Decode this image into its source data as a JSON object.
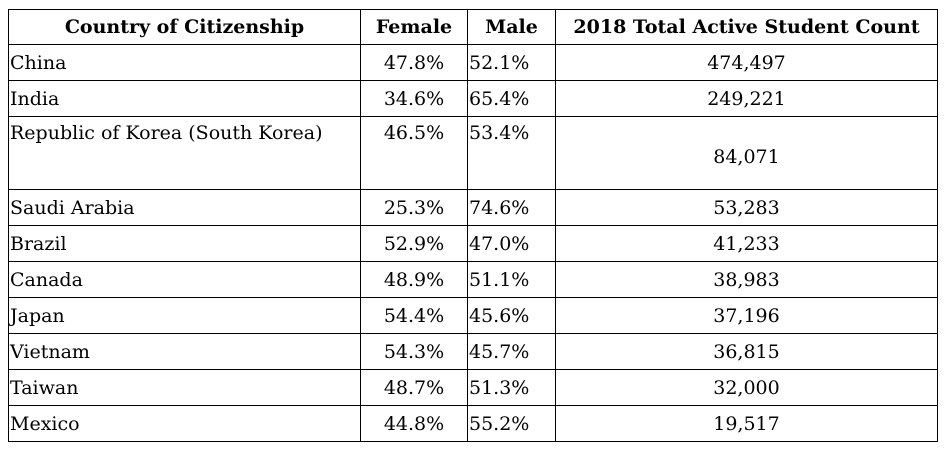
{
  "headers": {
    "country": "Country of Citizenship",
    "female": "Female",
    "male": "Male",
    "total": "2018 Total Active Student Count"
  },
  "rows": [
    {
      "country": "China",
      "female": "47.8%",
      "male": "52.1%",
      "total": "474,497"
    },
    {
      "country": "India",
      "female": "34.6%",
      "male": "65.4%",
      "total": "249,221"
    },
    {
      "country": "Republic of Korea (South Korea)",
      "female": "46.5%",
      "male": "53.4%",
      "total": "84,071"
    },
    {
      "country": "Saudi Arabia",
      "female": "25.3%",
      "male": "74.6%",
      "total": "53,283"
    },
    {
      "country": "Brazil",
      "female": "52.9%",
      "male": "47.0%",
      "total": "41,233"
    },
    {
      "country": "Canada",
      "female": "48.9%",
      "male": "51.1%",
      "total": "38,983"
    },
    {
      "country": "Japan",
      "female": "54.4%",
      "male": "45.6%",
      "total": "37,196"
    },
    {
      "country": "Vietnam",
      "female": "54.3%",
      "male": "45.7%",
      "total": "36,815"
    },
    {
      "country": "Taiwan",
      "female": "48.7%",
      "male": "51.3%",
      "total": "32,000"
    },
    {
      "country": "Mexico",
      "female": "44.8%",
      "male": "55.2%",
      "total": "19,517"
    }
  ]
}
